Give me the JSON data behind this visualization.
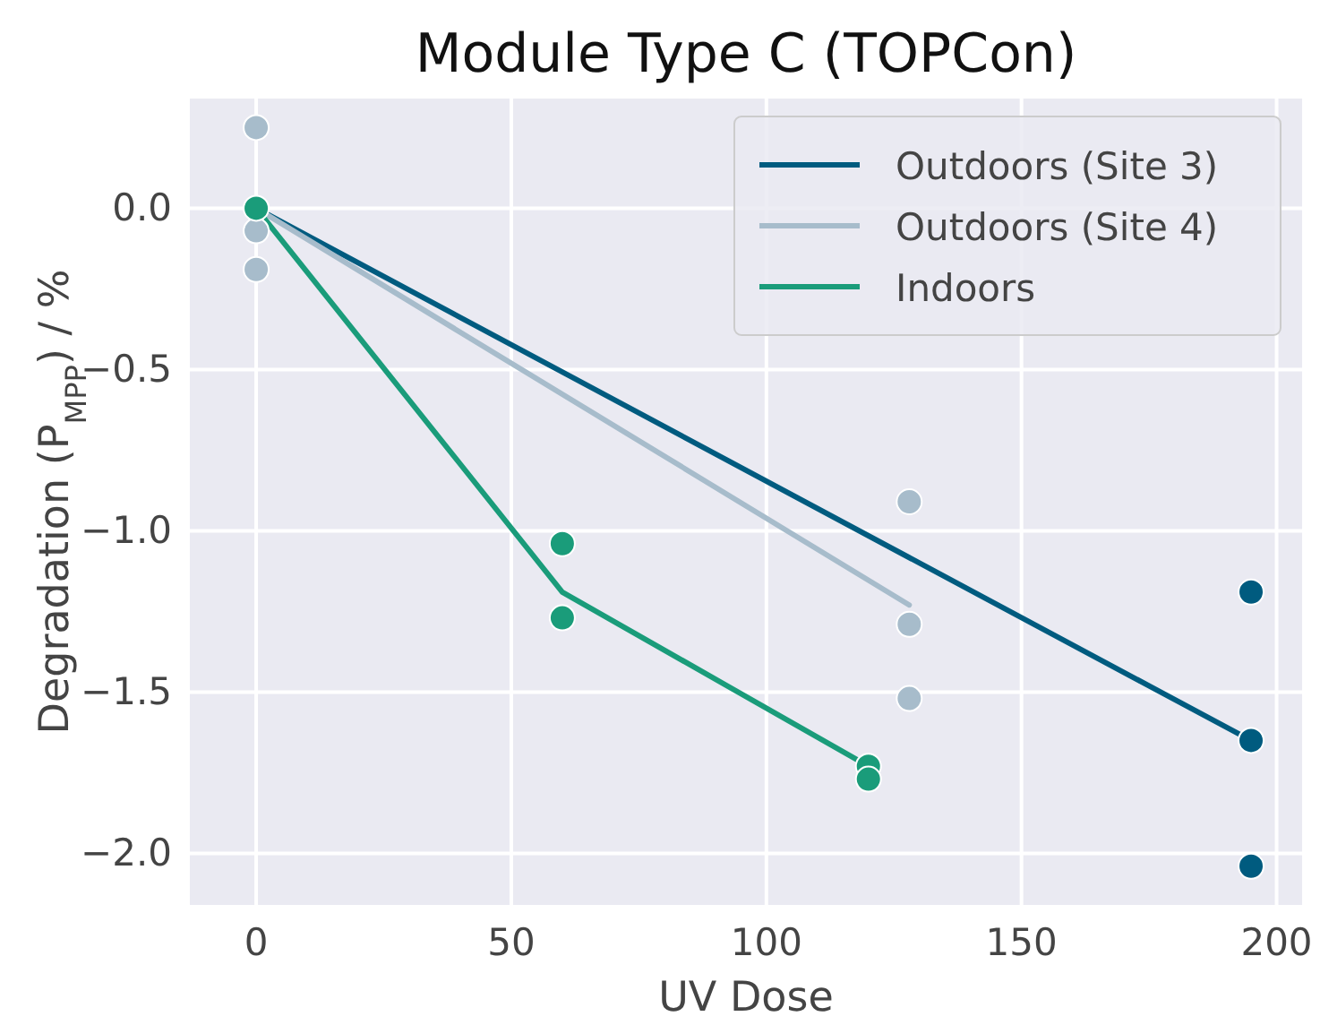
{
  "chart_data": {
    "type": "line",
    "title": "Module Type C (TOPCon)",
    "xlabel": "UV Dose",
    "ylabel": "Degradation (P$_{MPP}$) / %",
    "xlim": [
      -13,
      205
    ],
    "xticks": [
      0,
      50,
      100,
      150,
      200
    ],
    "ylim": [
      -2.16,
      0.34
    ],
    "yticks": [
      {
        "value": 0,
        "label": "0.0"
      },
      {
        "value": -0.5,
        "label": "−0.5"
      },
      {
        "value": -1,
        "label": "−1.0"
      },
      {
        "value": -1.5,
        "label": "−1.5"
      },
      {
        "value": -2,
        "label": "−2.0"
      }
    ],
    "grid": true,
    "legend": "top right",
    "series": [
      {
        "type": "scatter",
        "marker": "circle",
        "color": "#005b7f",
        "x": [
          195,
          195,
          195
        ],
        "values": [
          -1.19,
          -1.65,
          -2.04
        ]
      },
      {
        "type": "scatter",
        "marker": "circle",
        "color": "#a7bccb",
        "x": [
          0,
          0,
          0,
          128,
          128,
          128
        ],
        "values": [
          0.25,
          -0.07,
          -0.19,
          -0.91,
          -1.29,
          -1.52
        ]
      },
      {
        "type": "scatter",
        "marker": "circle",
        "color": "#1a9c7a",
        "x": [
          0,
          60,
          60,
          120,
          120
        ],
        "values": [
          0,
          -1.04,
          -1.27,
          -1.73,
          -1.77
        ]
      },
      {
        "name": "Outdoors (Site 3)",
        "color": "#005b7f",
        "x": [
          0,
          195
        ],
        "values": [
          0,
          -1.65
        ]
      },
      {
        "name": "Outdoors (Site 4)",
        "color": "#a7bccb",
        "x": [
          0,
          128
        ],
        "values": [
          0,
          -1.23
        ]
      },
      {
        "name": "Indoors",
        "color": "#1a9c7a",
        "x": [
          0,
          60,
          120
        ],
        "values": [
          0,
          -1.19,
          -1.73
        ]
      }
    ]
  }
}
